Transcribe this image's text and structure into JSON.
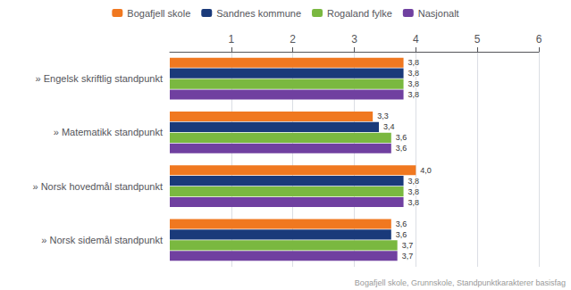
{
  "chart_data": {
    "type": "bar",
    "orientation": "horizontal",
    "categories": [
      "» Engelsk skriftlig standpunkt",
      "» Matematikk standpunkt",
      "» Norsk hovedmål standpunkt",
      "» Norsk sidemål standpunkt"
    ],
    "series": [
      {
        "name": "Bogafjell skole",
        "color": "#F07820",
        "values": [
          3.8,
          3.3,
          4.0,
          3.6
        ],
        "value_labels": [
          "3,8",
          "3,3",
          "4,0",
          "3,6"
        ]
      },
      {
        "name": "Sandnes kommune",
        "color": "#1A3A7A",
        "values": [
          3.8,
          3.4,
          3.8,
          3.6
        ],
        "value_labels": [
          "3,8",
          "3,4",
          "3,8",
          "3,6"
        ]
      },
      {
        "name": "Rogaland fylke",
        "color": "#7AB840",
        "values": [
          3.8,
          3.6,
          3.8,
          3.7
        ],
        "value_labels": [
          "3,8",
          "3,6",
          "3,8",
          "3,7"
        ]
      },
      {
        "name": "Nasjonalt",
        "color": "#7040A0",
        "values": [
          3.8,
          3.6,
          3.8,
          3.7
        ],
        "value_labels": [
          "3,8",
          "3,6",
          "3,8",
          "3,7"
        ]
      }
    ],
    "xlim": [
      0,
      6
    ],
    "xticks": [
      1,
      2,
      3,
      4,
      5,
      6
    ],
    "grid": true,
    "legend": "top",
    "data_labels": true,
    "annotations": [
      "Bogafjell skole, Grunnskole, Standpunktkarakterer basisfag"
    ]
  }
}
